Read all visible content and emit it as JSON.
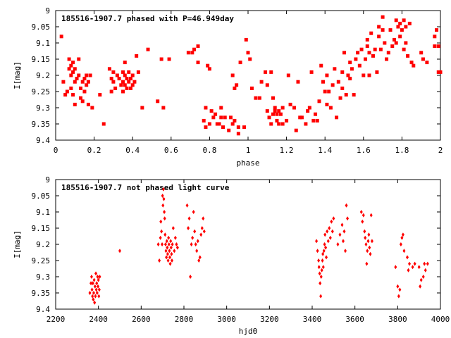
{
  "chart_data": [
    {
      "type": "scatter",
      "title": "185516-1907.7 phased with P=46.949day",
      "xlabel": "phase",
      "ylabel": "I[mag]",
      "xlim": [
        0,
        2
      ],
      "ylim": [
        9.4,
        9
      ],
      "y_inverted": true,
      "grid": false,
      "xticks": [
        "0",
        "0.2",
        "0.4",
        "0.6",
        "0.8",
        "1",
        "1.2",
        "1.4",
        "1.6",
        "1.8",
        "2"
      ],
      "xtick_values": [
        0,
        0.2,
        0.4,
        0.6,
        0.8,
        1,
        1.2,
        1.4,
        1.6,
        1.8,
        2
      ],
      "yticks": [
        "9",
        "9.05",
        "9.1",
        "9.15",
        "9.2",
        "9.25",
        "9.3",
        "9.35",
        "9.4"
      ],
      "ytick_values": [
        9,
        9.05,
        9.1,
        9.15,
        9.2,
        9.25,
        9.3,
        9.35,
        9.4
      ],
      "marker": "square",
      "color": "#ff0000",
      "points": [
        [
          0.03,
          9.08
        ],
        [
          0.04,
          9.22
        ],
        [
          0.05,
          9.26
        ],
        [
          0.06,
          9.25
        ],
        [
          0.07,
          9.18
        ],
        [
          0.07,
          9.15
        ],
        [
          0.08,
          9.17
        ],
        [
          0.08,
          9.2
        ],
        [
          0.08,
          9.24
        ],
        [
          0.09,
          9.16
        ],
        [
          0.09,
          9.19
        ],
        [
          0.09,
          9.26
        ],
        [
          0.1,
          9.18
        ],
        [
          0.1,
          9.22
        ],
        [
          0.1,
          9.29
        ],
        [
          0.11,
          9.21
        ],
        [
          0.12,
          9.15
        ],
        [
          0.12,
          9.2
        ],
        [
          0.13,
          9.24
        ],
        [
          0.13,
          9.27
        ],
        [
          0.14,
          9.22
        ],
        [
          0.14,
          9.28
        ],
        [
          0.15,
          9.21
        ],
        [
          0.15,
          9.25
        ],
        [
          0.16,
          9.2
        ],
        [
          0.16,
          9.23
        ],
        [
          0.17,
          9.22
        ],
        [
          0.17,
          9.29
        ],
        [
          0.18,
          9.2
        ],
        [
          0.19,
          9.3
        ],
        [
          0.23,
          9.26
        ],
        [
          0.25,
          9.35
        ],
        [
          0.28,
          9.18
        ],
        [
          0.29,
          9.21
        ],
        [
          0.29,
          9.25
        ],
        [
          0.3,
          9.19
        ],
        [
          0.3,
          9.22
        ],
        [
          0.31,
          9.24
        ],
        [
          0.32,
          9.2
        ],
        [
          0.33,
          9.21
        ],
        [
          0.34,
          9.23
        ],
        [
          0.35,
          9.19
        ],
        [
          0.35,
          9.22
        ],
        [
          0.35,
          9.25
        ],
        [
          0.36,
          9.16
        ],
        [
          0.36,
          9.2
        ],
        [
          0.36,
          9.23
        ],
        [
          0.37,
          9.21
        ],
        [
          0.37,
          9.24
        ],
        [
          0.38,
          9.19
        ],
        [
          0.38,
          9.22
        ],
        [
          0.39,
          9.21
        ],
        [
          0.39,
          9.24
        ],
        [
          0.4,
          9.2
        ],
        [
          0.4,
          9.23
        ],
        [
          0.41,
          9.22
        ],
        [
          0.42,
          9.14
        ],
        [
          0.43,
          9.19
        ],
        [
          0.45,
          9.3
        ],
        [
          0.48,
          9.12
        ],
        [
          0.53,
          9.28
        ],
        [
          0.55,
          9.15
        ],
        [
          0.56,
          9.3
        ],
        [
          0.59,
          9.15
        ],
        [
          0.69,
          9.13
        ],
        [
          0.71,
          9.13
        ],
        [
          0.72,
          9.12
        ],
        [
          0.74,
          9.11
        ],
        [
          0.74,
          9.16
        ],
        [
          0.77,
          9.34
        ],
        [
          0.78,
          9.3
        ],
        [
          0.78,
          9.36
        ],
        [
          0.79,
          9.17
        ],
        [
          0.8,
          9.35
        ],
        [
          0.8,
          9.18
        ],
        [
          0.81,
          9.31
        ],
        [
          0.82,
          9.33
        ],
        [
          0.83,
          9.32
        ],
        [
          0.84,
          9.35
        ],
        [
          0.85,
          9.35
        ],
        [
          0.86,
          9.33
        ],
        [
          0.86,
          9.3
        ],
        [
          0.87,
          9.36
        ],
        [
          0.88,
          9.33
        ],
        [
          0.9,
          9.37
        ],
        [
          0.91,
          9.33
        ],
        [
          0.92,
          9.35
        ],
        [
          0.92,
          9.2
        ],
        [
          0.93,
          9.24
        ],
        [
          0.93,
          9.34
        ],
        [
          0.94,
          9.23
        ],
        [
          0.95,
          9.36
        ],
        [
          0.95,
          9.38
        ],
        [
          0.96,
          9.16
        ],
        [
          0.98,
          9.36
        ],
        [
          0.99,
          9.09
        ],
        [
          1,
          9.13
        ],
        [
          1.01,
          9.15
        ],
        [
          1.02,
          9.24
        ],
        [
          1.04,
          9.27
        ],
        [
          1.06,
          9.27
        ],
        [
          1.07,
          9.22
        ],
        [
          1.09,
          9.19
        ],
        [
          1.1,
          9.23
        ],
        [
          1.1,
          9.31
        ],
        [
          1.11,
          9.33
        ],
        [
          1.12,
          9.19
        ],
        [
          1.12,
          9.35
        ],
        [
          1.13,
          9.27
        ],
        [
          1.13,
          9.32
        ],
        [
          1.14,
          9.31
        ],
        [
          1.14,
          9.3
        ],
        [
          1.15,
          9.32
        ],
        [
          1.15,
          9.34
        ],
        [
          1.16,
          9.35
        ],
        [
          1.16,
          9.31
        ],
        [
          1.17,
          9.32
        ],
        [
          1.18,
          9.3
        ],
        [
          1.18,
          9.35
        ],
        [
          1.2,
          9.34
        ],
        [
          1.21,
          9.2
        ],
        [
          1.22,
          9.29
        ],
        [
          1.24,
          9.3
        ],
        [
          1.25,
          9.37
        ],
        [
          1.26,
          9.22
        ],
        [
          1.27,
          9.33
        ],
        [
          1.28,
          9.33
        ],
        [
          1.3,
          9.35
        ],
        [
          1.31,
          9.31
        ],
        [
          1.32,
          9.3
        ],
        [
          1.33,
          9.19
        ],
        [
          1.34,
          9.34
        ],
        [
          1.35,
          9.32
        ],
        [
          1.36,
          9.34
        ],
        [
          1.37,
          9.28
        ],
        [
          1.38,
          9.17
        ],
        [
          1.39,
          9.22
        ],
        [
          1.4,
          9.25
        ],
        [
          1.41,
          9.29
        ],
        [
          1.41,
          9.2
        ],
        [
          1.42,
          9.25
        ],
        [
          1.43,
          9.3
        ],
        [
          1.44,
          9.23
        ],
        [
          1.45,
          9.18
        ],
        [
          1.46,
          9.33
        ],
        [
          1.47,
          9.22
        ],
        [
          1.48,
          9.27
        ],
        [
          1.49,
          9.19
        ],
        [
          1.49,
          9.24
        ],
        [
          1.5,
          9.13
        ],
        [
          1.51,
          9.26
        ],
        [
          1.52,
          9.2
        ],
        [
          1.53,
          9.16
        ],
        [
          1.53,
          9.21
        ],
        [
          1.54,
          9.18
        ],
        [
          1.55,
          9.26
        ],
        [
          1.56,
          9.15
        ],
        [
          1.57,
          9.13
        ],
        [
          1.58,
          9.17
        ],
        [
          1.59,
          9.12
        ],
        [
          1.6,
          9.2
        ],
        [
          1.61,
          9.15
        ],
        [
          1.62,
          9.11
        ],
        [
          1.62,
          9.09
        ],
        [
          1.63,
          9.13
        ],
        [
          1.63,
          9.2
        ],
        [
          1.64,
          9.07
        ],
        [
          1.65,
          9.14
        ],
        [
          1.66,
          9.12
        ],
        [
          1.67,
          9.19
        ],
        [
          1.68,
          9.05
        ],
        [
          1.68,
          9.08
        ],
        [
          1.69,
          9.12
        ],
        [
          1.7,
          9.06
        ],
        [
          1.7,
          9.02
        ],
        [
          1.71,
          9.1
        ],
        [
          1.72,
          9.15
        ],
        [
          1.73,
          9.13
        ],
        [
          1.74,
          9.06
        ],
        [
          1.75,
          9.11
        ],
        [
          1.76,
          9.09
        ],
        [
          1.77,
          9.03
        ],
        [
          1.77,
          9.1
        ],
        [
          1.78,
          9.05
        ],
        [
          1.79,
          9.04
        ],
        [
          1.79,
          9.08
        ],
        [
          1.8,
          9.06
        ],
        [
          1.81,
          9.12
        ],
        [
          1.81,
          9.03
        ],
        [
          1.82,
          9.05
        ],
        [
          1.82,
          9.1
        ],
        [
          1.83,
          9.14
        ],
        [
          1.84,
          9.04
        ],
        [
          1.85,
          9.16
        ],
        [
          1.86,
          9.17
        ],
        [
          1.9,
          9.13
        ],
        [
          1.91,
          9.15
        ],
        [
          1.93,
          9.16
        ],
        [
          1.97,
          9.11
        ],
        [
          1.97,
          9.08
        ],
        [
          1.98,
          9.06
        ],
        [
          1.99,
          9.11
        ],
        [
          1.99,
          9.19
        ],
        [
          2,
          9.19
        ]
      ]
    },
    {
      "type": "scatter",
      "title": "185516-1907.7 not phased light curve",
      "xlabel": "hjd0",
      "ylabel": "I[mag]",
      "xlim": [
        2200,
        4000
      ],
      "ylim": [
        9.4,
        9
      ],
      "y_inverted": true,
      "grid": false,
      "xticks": [
        "2200",
        "2400",
        "2600",
        "2800",
        "3000",
        "3200",
        "3400",
        "3600",
        "3800",
        "4000"
      ],
      "xtick_values": [
        2200,
        2400,
        2600,
        2800,
        3000,
        3200,
        3400,
        3600,
        3800,
        4000
      ],
      "yticks": [
        "9",
        "9.05",
        "9.1",
        "9.15",
        "9.2",
        "9.25",
        "9.3",
        "9.35",
        "9.4"
      ],
      "ytick_values": [
        9,
        9.05,
        9.1,
        9.15,
        9.2,
        9.25,
        9.3,
        9.35,
        9.4
      ],
      "marker": "diamond",
      "color": "#ff0000",
      "points": [
        [
          2360,
          9.35
        ],
        [
          2365,
          9.32
        ],
        [
          2368,
          9.3
        ],
        [
          2370,
          9.34
        ],
        [
          2372,
          9.36
        ],
        [
          2374,
          9.32
        ],
        [
          2376,
          9.37
        ],
        [
          2378,
          9.35
        ],
        [
          2380,
          9.31
        ],
        [
          2382,
          9.38
        ],
        [
          2384,
          9.33
        ],
        [
          2386,
          9.36
        ],
        [
          2388,
          9.29
        ],
        [
          2390,
          9.34
        ],
        [
          2392,
          9.32
        ],
        [
          2394,
          9.35
        ],
        [
          2396,
          9.3
        ],
        [
          2398,
          9.33
        ],
        [
          2400,
          9.31
        ],
        [
          2402,
          9.36
        ],
        [
          2404,
          9.34
        ],
        [
          2406,
          9.3
        ],
        [
          2500,
          9.22
        ],
        [
          2680,
          9.2
        ],
        [
          2685,
          9.25
        ],
        [
          2690,
          9.18
        ],
        [
          2692,
          9.13
        ],
        [
          2695,
          9.16
        ],
        [
          2698,
          9.2
        ],
        [
          2700,
          9.05
        ],
        [
          2702,
          9.08
        ],
        [
          2704,
          9.03
        ],
        [
          2706,
          9.06
        ],
        [
          2708,
          9.1
        ],
        [
          2710,
          9.12
        ],
        [
          2712,
          9.17
        ],
        [
          2714,
          9.2
        ],
        [
          2716,
          9.22
        ],
        [
          2718,
          9.24
        ],
        [
          2720,
          9.19
        ],
        [
          2722,
          9.21
        ],
        [
          2724,
          9.23
        ],
        [
          2726,
          9.25
        ],
        [
          2728,
          9.18
        ],
        [
          2730,
          9.2
        ],
        [
          2732,
          9.22
        ],
        [
          2734,
          9.24
        ],
        [
          2736,
          9.26
        ],
        [
          2738,
          9.19
        ],
        [
          2740,
          9.21
        ],
        [
          2742,
          9.23
        ],
        [
          2744,
          9.25
        ],
        [
          2746,
          9.2
        ],
        [
          2750,
          9.15
        ],
        [
          2755,
          9.22
        ],
        [
          2760,
          9.18
        ],
        [
          2765,
          9.2
        ],
        [
          2770,
          9.21
        ],
        [
          2815,
          9.08
        ],
        [
          2820,
          9.15
        ],
        [
          2825,
          9.12
        ],
        [
          2830,
          9.3
        ],
        [
          2835,
          9.2
        ],
        [
          2840,
          9.18
        ],
        [
          2845,
          9.1
        ],
        [
          2850,
          9.16
        ],
        [
          2855,
          9.2
        ],
        [
          2860,
          9.22
        ],
        [
          2865,
          9.19
        ],
        [
          2870,
          9.25
        ],
        [
          2875,
          9.24
        ],
        [
          2880,
          9.17
        ],
        [
          2885,
          9.15
        ],
        [
          2890,
          9.12
        ],
        [
          2895,
          9.16
        ],
        [
          3420,
          9.19
        ],
        [
          3425,
          9.22
        ],
        [
          3430,
          9.25
        ],
        [
          3432,
          9.27
        ],
        [
          3435,
          9.29
        ],
        [
          3437,
          9.32
        ],
        [
          3440,
          9.36
        ],
        [
          3442,
          9.3
        ],
        [
          3445,
          9.28
        ],
        [
          3448,
          9.25
        ],
        [
          3450,
          9.23
        ],
        [
          3452,
          9.27
        ],
        [
          3455,
          9.22
        ],
        [
          3458,
          9.2
        ],
        [
          3460,
          9.17
        ],
        [
          3463,
          9.21
        ],
        [
          3466,
          9.24
        ],
        [
          3470,
          9.16
        ],
        [
          3475,
          9.19
        ],
        [
          3480,
          9.15
        ],
        [
          3485,
          9.18
        ],
        [
          3490,
          9.13
        ],
        [
          3495,
          9.16
        ],
        [
          3500,
          9.12
        ],
        [
          3520,
          9.2
        ],
        [
          3530,
          9.17
        ],
        [
          3540,
          9.14
        ],
        [
          3545,
          9.19
        ],
        [
          3550,
          9.16
        ],
        [
          3555,
          9.22
        ],
        [
          3560,
          9.08
        ],
        [
          3565,
          9.12
        ],
        [
          3630,
          9.1
        ],
        [
          3635,
          9.13
        ],
        [
          3640,
          9.11
        ],
        [
          3645,
          9.16
        ],
        [
          3648,
          9.18
        ],
        [
          3652,
          9.2
        ],
        [
          3655,
          9.26
        ],
        [
          3658,
          9.22
        ],
        [
          3662,
          9.19
        ],
        [
          3665,
          9.17
        ],
        [
          3668,
          9.21
        ],
        [
          3672,
          9.23
        ],
        [
          3676,
          9.11
        ],
        [
          3680,
          9.19
        ],
        [
          3790,
          9.27
        ],
        [
          3800,
          9.33
        ],
        [
          3805,
          9.36
        ],
        [
          3810,
          9.34
        ],
        [
          3815,
          9.2
        ],
        [
          3820,
          9.18
        ],
        [
          3825,
          9.17
        ],
        [
          3830,
          9.22
        ],
        [
          3845,
          9.24
        ],
        [
          3850,
          9.28
        ],
        [
          3855,
          9.26
        ],
        [
          3870,
          9.27
        ],
        [
          3880,
          9.26
        ],
        [
          3900,
          9.27
        ],
        [
          3905,
          9.33
        ],
        [
          3910,
          9.31
        ],
        [
          3920,
          9.3
        ],
        [
          3925,
          9.26
        ],
        [
          3930,
          9.28
        ],
        [
          3940,
          9.26
        ]
      ]
    }
  ]
}
